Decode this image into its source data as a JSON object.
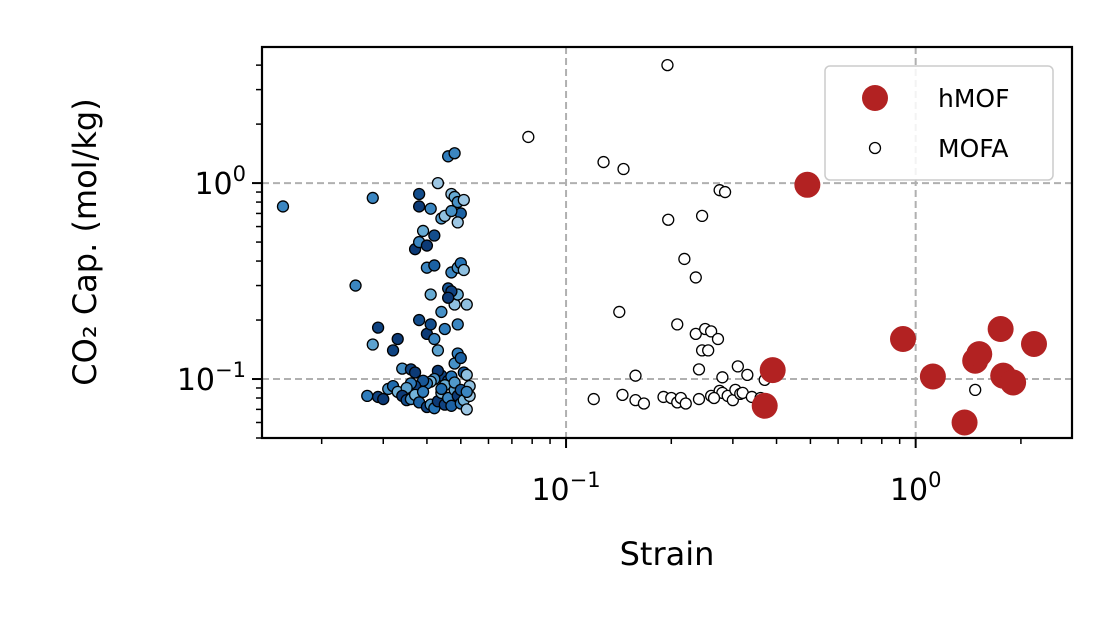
{
  "chart_data": {
    "type": "scatter",
    "xlabel": "Strain",
    "ylabel": "CO₂ Cap. (mol/kg)",
    "xscale": "log",
    "yscale": "log",
    "xlim": [
      0.0135,
      2.8
    ],
    "ylim": [
      0.05,
      4.95
    ],
    "x_ticks": [
      0.1,
      1
    ],
    "y_ticks": [
      0.1,
      1
    ],
    "x_tick_labels": [
      {
        "base": "10",
        "exp": "−1"
      },
      {
        "base": "10",
        "exp": "0"
      }
    ],
    "y_tick_labels": [
      {
        "base": "10",
        "exp": "−1"
      },
      {
        "base": "10",
        "exp": "0"
      }
    ],
    "grid": "dashed, major ticks only",
    "legend": "top-right",
    "colors": {
      "hmof": "#b22222",
      "mofa_fill": "#ffffff",
      "edge": "#000000",
      "blue_dark": "#08306b",
      "blue_mid": "#2171b5",
      "blue_light": "#6baed6",
      "blue_pale": "#c6dbef",
      "grid": "#b0b0b0"
    },
    "series": [
      {
        "name": "hMOF",
        "marker": "large filled circle",
        "points": [
          [
            0.49,
            0.98
          ],
          [
            0.39,
            0.111
          ],
          [
            0.37,
            0.073
          ],
          [
            0.92,
            0.16
          ],
          [
            1.12,
            0.103
          ],
          [
            1.48,
            0.124
          ],
          [
            1.52,
            0.134
          ],
          [
            1.75,
            0.18
          ],
          [
            1.78,
            0.104
          ],
          [
            1.9,
            0.096
          ],
          [
            2.18,
            0.151
          ],
          [
            1.38,
            0.06
          ]
        ]
      },
      {
        "name": "MOFA",
        "marker": "small open circle",
        "points": [
          [
            0.195,
            4.0
          ],
          [
            0.078,
            1.72
          ],
          [
            0.128,
            1.28
          ],
          [
            0.146,
            1.18
          ],
          [
            0.275,
            0.92
          ],
          [
            0.285,
            0.9
          ],
          [
            0.196,
            0.65
          ],
          [
            0.245,
            0.68
          ],
          [
            0.218,
            0.41
          ],
          [
            0.235,
            0.33
          ],
          [
            0.142,
            0.22
          ],
          [
            0.208,
            0.19
          ],
          [
            0.235,
            0.17
          ],
          [
            0.25,
            0.18
          ],
          [
            0.26,
            0.175
          ],
          [
            0.272,
            0.16
          ],
          [
            0.245,
            0.14
          ],
          [
            0.255,
            0.14
          ],
          [
            0.24,
            0.112
          ],
          [
            0.31,
            0.116
          ],
          [
            0.33,
            0.105
          ],
          [
            0.28,
            0.102
          ],
          [
            0.37,
            0.099
          ],
          [
            0.158,
            0.104
          ],
          [
            0.12,
            0.079
          ],
          [
            0.145,
            0.083
          ],
          [
            0.158,
            0.078
          ],
          [
            0.167,
            0.075
          ],
          [
            0.19,
            0.081
          ],
          [
            0.2,
            0.08
          ],
          [
            0.208,
            0.076
          ],
          [
            0.213,
            0.08
          ],
          [
            0.22,
            0.075
          ],
          [
            0.24,
            0.079
          ],
          [
            0.26,
            0.082
          ],
          [
            0.275,
            0.087
          ],
          [
            0.28,
            0.085
          ],
          [
            0.29,
            0.082
          ],
          [
            0.3,
            0.078
          ],
          [
            0.305,
            0.088
          ],
          [
            0.315,
            0.084
          ],
          [
            0.32,
            0.085
          ],
          [
            0.34,
            0.081
          ],
          [
            0.36,
            0.08
          ],
          [
            0.265,
            0.08
          ],
          [
            1.48,
            0.088
          ],
          [
            1.93,
            0.096
          ]
        ]
      },
      {
        "name": "",
        "marker": "small blue circle",
        "points": [
          [
            0.0155,
            0.76,
            0.55
          ],
          [
            0.028,
            0.84,
            0.55
          ],
          [
            0.025,
            0.3,
            0.55
          ],
          [
            0.029,
            0.183,
            0.9
          ],
          [
            0.028,
            0.15,
            0.4
          ],
          [
            0.033,
            0.16,
            0.95
          ],
          [
            0.032,
            0.14,
            0.9
          ],
          [
            0.027,
            0.082,
            0.6
          ],
          [
            0.029,
            0.081,
            0.9
          ],
          [
            0.03,
            0.079,
            0.95
          ],
          [
            0.031,
            0.089,
            0.5
          ],
          [
            0.032,
            0.092,
            0.7
          ],
          [
            0.033,
            0.086,
            0.3
          ],
          [
            0.034,
            0.113,
            0.5
          ],
          [
            0.036,
            0.112,
            0.9
          ],
          [
            0.037,
            0.108,
            0.95
          ],
          [
            0.038,
            0.88,
            0.85
          ],
          [
            0.038,
            0.76,
            0.95
          ],
          [
            0.037,
            0.46,
            0.95
          ],
          [
            0.038,
            0.5,
            0.55
          ],
          [
            0.039,
            0.57,
            0.35
          ],
          [
            0.04,
            0.48,
            0.95
          ],
          [
            0.041,
            0.74,
            0.55
          ],
          [
            0.042,
            0.54,
            0.85
          ],
          [
            0.043,
            1.0,
            0.15
          ],
          [
            0.044,
            0.66,
            0.45
          ],
          [
            0.045,
            0.68,
            0.2
          ],
          [
            0.046,
            1.37,
            0.6
          ],
          [
            0.048,
            1.42,
            0.55
          ],
          [
            0.047,
            0.88,
            0.2
          ],
          [
            0.048,
            0.85,
            0.35
          ],
          [
            0.049,
            0.8,
            0.5
          ],
          [
            0.05,
            0.7,
            0.75
          ],
          [
            0.049,
            0.63,
            0.15
          ],
          [
            0.047,
            0.72,
            0.5
          ],
          [
            0.051,
            0.82,
            0.15
          ],
          [
            0.04,
            0.37,
            0.55
          ],
          [
            0.041,
            0.27,
            0.35
          ],
          [
            0.042,
            0.38,
            0.75
          ],
          [
            0.046,
            0.29,
            0.8
          ],
          [
            0.047,
            0.35,
            0.55
          ],
          [
            0.048,
            0.24,
            0.2
          ],
          [
            0.049,
            0.37,
            0.5
          ],
          [
            0.05,
            0.39,
            0.65
          ],
          [
            0.051,
            0.36,
            0.2
          ],
          [
            0.052,
            0.24,
            0.2
          ],
          [
            0.049,
            0.27,
            0.35
          ],
          [
            0.047,
            0.28,
            0.9
          ],
          [
            0.046,
            0.26,
            0.95
          ],
          [
            0.038,
            0.2,
            0.85
          ],
          [
            0.04,
            0.17,
            0.95
          ],
          [
            0.041,
            0.19,
            0.85
          ],
          [
            0.042,
            0.16,
            0.55
          ],
          [
            0.044,
            0.22,
            0.5
          ],
          [
            0.045,
            0.18,
            0.6
          ],
          [
            0.049,
            0.19,
            0.55
          ],
          [
            0.043,
            0.14,
            0.4
          ],
          [
            0.048,
            0.12,
            0.5
          ],
          [
            0.049,
            0.135,
            0.6
          ],
          [
            0.05,
            0.128,
            0.75
          ],
          [
            0.051,
            0.108,
            0.8
          ],
          [
            0.052,
            0.105,
            0.2
          ],
          [
            0.044,
            0.104,
            0.9
          ],
          [
            0.043,
            0.11,
            0.95
          ],
          [
            0.042,
            0.1,
            0.5
          ],
          [
            0.041,
            0.097,
            0.3
          ],
          [
            0.04,
            0.095,
            0.6
          ],
          [
            0.039,
            0.098,
            0.8
          ],
          [
            0.037,
            0.092,
            0.9
          ],
          [
            0.036,
            0.095,
            0.6
          ],
          [
            0.035,
            0.09,
            0.4
          ],
          [
            0.034,
            0.082,
            0.95
          ],
          [
            0.035,
            0.078,
            0.85
          ],
          [
            0.036,
            0.079,
            0.5
          ],
          [
            0.037,
            0.083,
            0.3
          ],
          [
            0.038,
            0.076,
            0.75
          ],
          [
            0.039,
            0.086,
            0.6
          ],
          [
            0.04,
            0.072,
            0.9
          ],
          [
            0.041,
            0.074,
            0.45
          ],
          [
            0.042,
            0.071,
            0.65
          ],
          [
            0.043,
            0.077,
            0.95
          ],
          [
            0.044,
            0.085,
            0.25
          ],
          [
            0.045,
            0.074,
            0.9
          ],
          [
            0.046,
            0.08,
            0.55
          ],
          [
            0.047,
            0.073,
            0.75
          ],
          [
            0.048,
            0.088,
            0.4
          ],
          [
            0.049,
            0.082,
            0.95
          ],
          [
            0.05,
            0.075,
            0.6
          ],
          [
            0.051,
            0.078,
            0.3
          ],
          [
            0.052,
            0.07,
            0.15
          ],
          [
            0.053,
            0.092,
            0.2
          ],
          [
            0.046,
            0.098,
            0.85
          ],
          [
            0.047,
            0.103,
            0.65
          ],
          [
            0.045,
            0.093,
            0.35
          ],
          [
            0.044,
            0.089,
            0.7
          ],
          [
            0.048,
            0.096,
            0.45
          ],
          [
            0.05,
            0.088,
            0.8
          ],
          [
            0.053,
            0.082,
            0.15
          ],
          [
            0.052,
            0.086,
            0.55
          ]
        ]
      }
    ]
  }
}
